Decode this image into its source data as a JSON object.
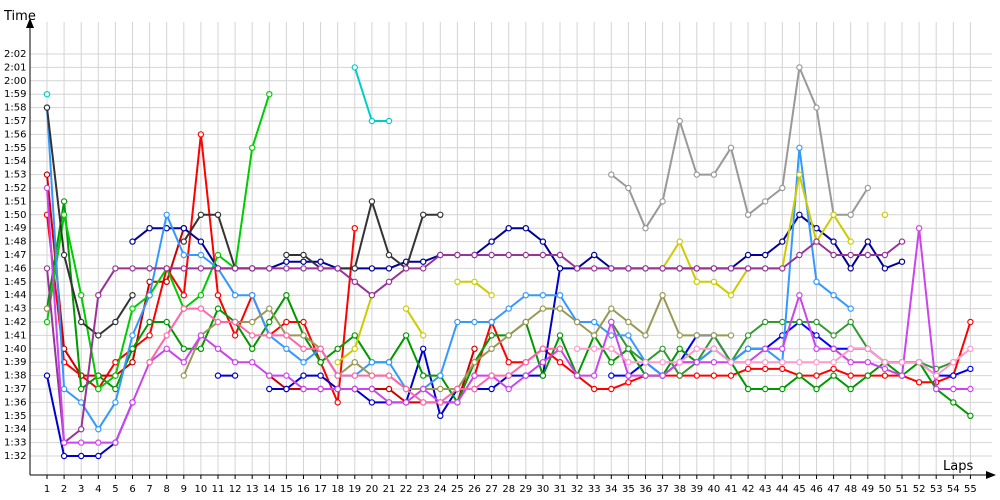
{
  "chart_data": {
    "type": "line",
    "xlabel": "Laps",
    "ylabel": "Time",
    "x_ticks": [
      1,
      2,
      3,
      4,
      5,
      6,
      7,
      8,
      9,
      10,
      11,
      12,
      13,
      14,
      15,
      16,
      17,
      18,
      19,
      20,
      21,
      22,
      23,
      24,
      25,
      26,
      27,
      28,
      29,
      30,
      31,
      32,
      33,
      34,
      35,
      36,
      37,
      38,
      39,
      40,
      41,
      42,
      43,
      44,
      45,
      46,
      47,
      48,
      49,
      50,
      51,
      52,
      53,
      54,
      55
    ],
    "y_tick_labels": [
      "1:32",
      "1:33",
      "1:34",
      "1:35",
      "1:36",
      "1:37",
      "1:38",
      "1:39",
      "1:40",
      "1:41",
      "1:42",
      "1:43",
      "1:44",
      "1:45",
      "1:46",
      "1:47",
      "1:48",
      "1:49",
      "1:50",
      "1:51",
      "1:52",
      "1:53",
      "1:54",
      "1:55",
      "1:56",
      "1:57",
      "1:58",
      "1:59",
      "2:00",
      "2:01",
      "2:02"
    ],
    "y_tick_values": [
      92,
      93,
      94,
      95,
      96,
      97,
      98,
      99,
      100,
      101,
      102,
      103,
      104,
      105,
      106,
      107,
      108,
      109,
      110,
      111,
      112,
      113,
      114,
      115,
      116,
      117,
      118,
      119,
      120,
      121,
      122
    ],
    "xlim": [
      1,
      55
    ],
    "ylim": [
      92,
      122
    ],
    "grid": true,
    "series": [
      {
        "color": "#ff0000",
        "values": [
          110,
          99,
          98,
          97,
          99,
          100,
          101,
          106,
          104,
          116,
          104,
          101,
          104,
          101,
          102,
          102,
          99,
          96,
          109,
          null,
          null,
          null,
          null,
          null,
          null,
          98,
          102,
          99,
          99,
          100,
          99,
          98,
          97,
          97,
          97.5,
          98,
          98,
          98,
          98,
          98,
          98,
          98.5,
          98.5,
          98.5,
          98,
          98,
          98.5,
          98,
          98,
          98,
          98,
          97.5,
          97.5,
          98,
          102
        ]
      },
      {
        "color": "#cc0000",
        "values": [
          113,
          100,
          98,
          98,
          98,
          99,
          105,
          105,
          109,
          null,
          null,
          null,
          null,
          98,
          97,
          97,
          97,
          97,
          97,
          97,
          97,
          96,
          96,
          96,
          96,
          100,
          null,
          null,
          null,
          null,
          null,
          null,
          null,
          null,
          null,
          null,
          null,
          null,
          null,
          null,
          null,
          null,
          null,
          null,
          null,
          null,
          null,
          null,
          null,
          null,
          null,
          null,
          null,
          null,
          null
        ]
      },
      {
        "color": "#0000cc",
        "values": [
          98,
          92,
          92,
          92,
          93,
          96,
          null,
          null,
          null,
          null,
          98,
          98,
          null,
          97,
          97,
          98,
          98,
          97,
          97,
          96,
          96,
          96,
          100,
          95,
          97,
          97,
          97,
          98,
          98,
          98,
          106,
          null,
          null,
          null,
          null,
          null,
          null,
          null,
          null,
          null,
          null,
          null,
          null,
          null,
          null,
          null,
          null,
          null,
          null,
          null,
          null,
          null,
          null,
          null,
          null
        ]
      },
      {
        "color": "#000099",
        "values": [
          null,
          null,
          null,
          null,
          null,
          108,
          109,
          109,
          109,
          108,
          106,
          106,
          106,
          106,
          106.5,
          106.5,
          106.5,
          106,
          106,
          106,
          106,
          106.5,
          106.5,
          107,
          107,
          107,
          108,
          109,
          109,
          108,
          106,
          106,
          107,
          106,
          106,
          106,
          106,
          106,
          106,
          106,
          106,
          107,
          107,
          108,
          110,
          109,
          108,
          106,
          108,
          106,
          106.5,
          null,
          null,
          null,
          null
        ]
      },
      {
        "color": "#0000ff",
        "values": [
          null,
          null,
          null,
          null,
          null,
          null,
          null,
          null,
          null,
          null,
          null,
          null,
          null,
          null,
          null,
          null,
          null,
          null,
          null,
          null,
          null,
          null,
          null,
          null,
          null,
          null,
          null,
          null,
          null,
          null,
          null,
          null,
          null,
          98,
          98,
          99,
          98,
          99,
          101,
          101,
          99,
          100,
          100,
          101,
          102,
          101,
          100,
          100,
          100,
          99,
          99,
          99,
          98,
          98,
          98.5
        ]
      },
      {
        "color": "#009900",
        "values": [
          103,
          111,
          97,
          98,
          97,
          100,
          102,
          102,
          100,
          100,
          103,
          102,
          100,
          102,
          104,
          101,
          99,
          100,
          101,
          99,
          99,
          101,
          98,
          98,
          96,
          99,
          101,
          101,
          102,
          98,
          101,
          98,
          101,
          99,
          100,
          98,
          98,
          100,
          99,
          100,
          99,
          97,
          97,
          97,
          98,
          97,
          98,
          97,
          98,
          99,
          98,
          99,
          97,
          96,
          95
        ]
      },
      {
        "color": "#00cc00",
        "values": [
          102,
          110,
          104,
          97,
          98,
          103,
          104,
          106,
          103,
          104,
          107,
          106,
          115,
          119,
          null,
          null,
          null,
          null,
          null,
          null,
          null,
          null,
          null,
          null,
          null,
          null,
          null,
          null,
          null,
          null,
          null,
          null,
          null,
          null,
          null,
          null,
          null,
          null,
          null,
          null,
          null,
          null,
          null,
          null,
          null,
          null,
          null,
          null,
          null,
          null,
          null,
          null,
          null,
          null,
          null
        ]
      },
      {
        "color": "#339933",
        "values": [
          null,
          null,
          null,
          null,
          null,
          null,
          null,
          null,
          null,
          null,
          null,
          null,
          null,
          null,
          null,
          null,
          null,
          null,
          null,
          null,
          null,
          null,
          null,
          null,
          null,
          null,
          null,
          null,
          null,
          null,
          null,
          null,
          null,
          102,
          100,
          99,
          100,
          98,
          99,
          101,
          99,
          101,
          102,
          102,
          102,
          102,
          101,
          102,
          100,
          99,
          99,
          99,
          98.5,
          99,
          null
        ]
      },
      {
        "color": "#00cccc",
        "values": [
          119,
          null,
          null,
          null,
          null,
          null,
          null,
          null,
          null,
          null,
          null,
          null,
          null,
          null,
          null,
          null,
          null,
          null,
          121,
          117,
          117,
          null,
          null,
          null,
          null,
          null,
          null,
          null,
          null,
          null,
          null,
          null,
          null,
          null,
          null,
          null,
          null,
          null,
          null,
          null,
          null,
          null,
          null,
          null,
          null,
          null,
          null,
          null,
          null,
          null,
          null,
          null,
          null,
          null,
          null
        ]
      },
      {
        "color": "#3399ff",
        "values": [
          118,
          97,
          96,
          94,
          96,
          101,
          104,
          110,
          107,
          107,
          106,
          104,
          104,
          101,
          100,
          99,
          100,
          98,
          98,
          99,
          99,
          97,
          97,
          98,
          102,
          102,
          102,
          103,
          104,
          104,
          104,
          102,
          102,
          101,
          101,
          99,
          98,
          99,
          99,
          100,
          99,
          100,
          100,
          99,
          115,
          105,
          104,
          103,
          null,
          null,
          null,
          null,
          null,
          null,
          null
        ]
      },
      {
        "color": "#333333",
        "values": [
          118,
          107,
          102,
          101,
          102,
          104,
          null,
          null,
          108,
          110,
          110,
          106,
          106,
          null,
          107,
          107,
          106,
          106,
          106,
          111,
          107,
          106,
          110,
          110,
          null,
          null,
          null,
          null,
          null,
          null,
          null,
          null,
          null,
          null,
          null,
          null,
          null,
          null,
          null,
          null,
          null,
          null,
          null,
          null,
          null,
          null,
          null,
          null,
          null,
          null,
          null,
          null,
          null,
          null,
          null
        ]
      },
      {
        "color": "#999999",
        "values": [
          null,
          null,
          null,
          null,
          null,
          null,
          null,
          null,
          null,
          null,
          null,
          null,
          null,
          null,
          null,
          null,
          null,
          null,
          null,
          null,
          null,
          null,
          null,
          null,
          null,
          null,
          null,
          null,
          null,
          null,
          null,
          null,
          null,
          113,
          112,
          109,
          111,
          117,
          113,
          113,
          115,
          110,
          111,
          112,
          121,
          118,
          110,
          110,
          112,
          null,
          null,
          null,
          null,
          null,
          null
        ]
      },
      {
        "color": "#cccc00",
        "values": [
          null,
          null,
          null,
          null,
          null,
          null,
          null,
          null,
          null,
          null,
          null,
          null,
          null,
          null,
          null,
          null,
          null,
          99,
          100,
          104,
          null,
          103,
          101,
          null,
          105,
          105,
          104,
          null,
          null,
          null,
          null,
          null,
          null,
          null,
          null,
          106,
          106,
          108,
          105,
          105,
          104,
          106,
          106,
          106,
          113,
          108,
          110,
          108,
          null,
          110,
          null,
          null,
          null,
          null,
          null
        ]
      },
      {
        "color": "#999955",
        "values": [
          103,
          null,
          null,
          null,
          null,
          null,
          null,
          null,
          98,
          101,
          102,
          102,
          102,
          103,
          101,
          101,
          100,
          98,
          99,
          98,
          98,
          97,
          97,
          97,
          97,
          99,
          100,
          101,
          102,
          103,
          103,
          102,
          101,
          103,
          102,
          101,
          104,
          101,
          101,
          101,
          101,
          null,
          null,
          null,
          null,
          null,
          null,
          null,
          null,
          null,
          null,
          null,
          null,
          null,
          null
        ]
      },
      {
        "color": "#993399",
        "values": [
          106,
          93,
          94,
          104,
          106,
          106,
          106,
          106,
          106,
          106,
          106,
          106,
          106,
          106,
          106,
          106,
          106,
          106,
          105,
          104,
          105,
          106,
          106,
          107,
          107,
          107,
          107,
          107,
          107,
          107,
          107,
          106,
          106,
          106,
          106,
          106,
          106,
          106,
          106,
          106,
          106,
          106,
          106,
          106,
          107,
          108,
          107,
          107,
          107,
          107,
          108,
          null,
          null,
          null,
          null
        ]
      },
      {
        "color": "#cc44ee",
        "values": [
          112,
          93,
          93,
          93,
          93,
          96,
          99,
          100,
          99,
          101,
          100,
          99,
          99,
          98,
          98,
          97,
          97,
          97,
          97,
          97,
          96,
          96,
          97,
          96,
          96,
          98,
          98,
          97,
          98,
          99,
          100,
          98,
          98,
          102,
          98,
          98,
          98,
          99,
          99,
          99,
          99,
          99,
          100,
          100,
          104,
          100,
          100,
          99,
          99,
          98.5,
          98,
          109,
          97,
          97,
          97
        ]
      },
      {
        "color": "#ff99cc",
        "values": [
          null,
          null,
          null,
          null,
          null,
          null,
          null,
          null,
          null,
          null,
          null,
          null,
          null,
          null,
          null,
          null,
          null,
          null,
          null,
          null,
          null,
          null,
          null,
          null,
          null,
          null,
          null,
          null,
          null,
          null,
          null,
          100,
          100,
          100,
          99,
          99,
          99,
          99,
          100,
          100,
          99,
          99,
          99,
          99,
          99,
          99,
          99,
          100,
          100,
          99,
          99,
          99,
          98,
          99,
          100
        ]
      },
      {
        "color": "#ff66aa",
        "values": [
          null,
          null,
          null,
          null,
          null,
          null,
          99,
          101,
          103,
          103,
          102,
          102,
          101,
          101,
          101,
          100,
          100,
          98,
          98,
          98,
          98,
          97,
          96,
          96,
          97,
          97,
          98,
          98,
          99,
          100,
          100,
          null,
          null,
          null,
          null,
          null,
          null,
          null,
          null,
          null,
          null,
          null,
          null,
          null,
          null,
          null,
          null,
          null,
          null,
          null,
          null,
          null,
          null,
          null,
          null
        ]
      },
      {
        "color": "#88bb33",
        "values": [
          null,
          null,
          null,
          null,
          null,
          null,
          null,
          null,
          null,
          null,
          null,
          null,
          null,
          null,
          null,
          null,
          null,
          null,
          null,
          null,
          null,
          null,
          null,
          null,
          null,
          null,
          null,
          null,
          null,
          null,
          null,
          null,
          null,
          null,
          null,
          null,
          null,
          null,
          null,
          null,
          null,
          null,
          null,
          null,
          null,
          null,
          null,
          null,
          null,
          null,
          null,
          null,
          null,
          null,
          null
        ]
      },
      {
        "color": "#aacc66",
        "values": [
          null,
          null,
          null,
          null,
          null,
          null,
          null,
          null,
          null,
          null,
          null,
          null,
          null,
          null,
          null,
          null,
          null,
          null,
          null,
          null,
          null,
          null,
          null,
          null,
          null,
          null,
          null,
          null,
          null,
          null,
          null,
          null,
          null,
          null,
          null,
          null,
          null,
          null,
          null,
          null,
          null,
          null,
          null,
          null,
          null,
          null,
          null,
          null,
          null,
          null,
          null,
          null,
          null,
          null,
          null
        ]
      }
    ]
  }
}
